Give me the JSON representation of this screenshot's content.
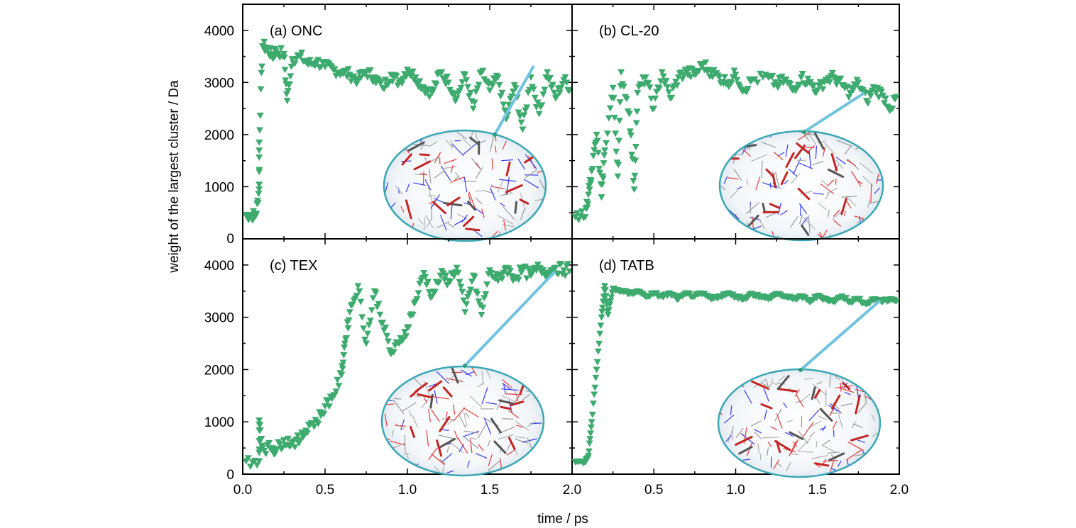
{
  "colors": {
    "marker": "#3daa6e",
    "frame": "#000000",
    "arrow": "#6fc3df",
    "inset_border": "#3aa6b5"
  },
  "axes": {
    "ylabel": "weight of the largest cluster / Da",
    "xlabel": "time / ps"
  },
  "chart_data": [
    {
      "type": "scatter",
      "label": "(a) ONC",
      "marker": "triangle-down",
      "xlim": [
        0,
        2.0
      ],
      "ylim": [
        0,
        4500
      ],
      "y_ticks": [
        "0",
        "1000",
        "2000",
        "3000",
        "4000"
      ],
      "x_ticks": [],
      "inset": "molecular-cluster-snapshot",
      "points": [
        [
          0.02,
          450
        ],
        [
          0.05,
          450
        ],
        [
          0.08,
          450
        ],
        [
          0.1,
          950
        ],
        [
          0.1,
          1850
        ],
        [
          0.12,
          3700
        ],
        [
          0.15,
          3650
        ],
        [
          0.18,
          3500
        ],
        [
          0.2,
          3600
        ],
        [
          0.25,
          3550
        ],
        [
          0.27,
          2650
        ],
        [
          0.3,
          3450
        ],
        [
          0.35,
          3500
        ],
        [
          0.4,
          3350
        ],
        [
          0.45,
          3400
        ],
        [
          0.5,
          3300
        ],
        [
          0.55,
          3250
        ],
        [
          0.6,
          3200
        ],
        [
          0.65,
          3150
        ],
        [
          0.7,
          3050
        ],
        [
          0.75,
          3200
        ],
        [
          0.8,
          3100
        ],
        [
          0.85,
          2900
        ],
        [
          0.9,
          3150
        ],
        [
          0.95,
          3000
        ],
        [
          1.0,
          3250
        ],
        [
          1.05,
          3100
        ],
        [
          1.1,
          2900
        ],
        [
          1.15,
          2800
        ],
        [
          1.2,
          3200
        ],
        [
          1.25,
          3000
        ],
        [
          1.3,
          2700
        ],
        [
          1.35,
          3150
        ],
        [
          1.4,
          2500
        ],
        [
          1.45,
          3200
        ],
        [
          1.5,
          2850
        ],
        [
          1.55,
          3100
        ],
        [
          1.6,
          2300
        ],
        [
          1.65,
          2950
        ],
        [
          1.7,
          2100
        ],
        [
          1.75,
          3100
        ],
        [
          1.8,
          2400
        ],
        [
          1.85,
          3200
        ],
        [
          1.9,
          2700
        ],
        [
          1.95,
          3050
        ],
        [
          2.0,
          2850
        ]
      ]
    },
    {
      "type": "scatter",
      "label": "(b) CL-20",
      "marker": "triangle-down",
      "xlim": [
        0,
        2.0
      ],
      "ylim": [
        0,
        4500
      ],
      "y_ticks": [],
      "x_ticks": [],
      "inset": "molecular-cluster-snapshot",
      "points": [
        [
          0.02,
          420
        ],
        [
          0.08,
          420
        ],
        [
          0.1,
          850
        ],
        [
          0.12,
          1300
        ],
        [
          0.15,
          2000
        ],
        [
          0.18,
          800
        ],
        [
          0.2,
          1700
        ],
        [
          0.25,
          2900
        ],
        [
          0.28,
          1200
        ],
        [
          0.3,
          3200
        ],
        [
          0.35,
          2400
        ],
        [
          0.38,
          950
        ],
        [
          0.4,
          2800
        ],
        [
          0.45,
          3100
        ],
        [
          0.5,
          2500
        ],
        [
          0.55,
          3200
        ],
        [
          0.6,
          2700
        ],
        [
          0.65,
          3100
        ],
        [
          0.7,
          3200
        ],
        [
          0.75,
          3150
        ],
        [
          0.8,
          3350
        ],
        [
          0.85,
          3200
        ],
        [
          0.9,
          3100
        ],
        [
          0.95,
          3000
        ],
        [
          1.0,
          3150
        ],
        [
          1.05,
          2850
        ],
        [
          1.1,
          3050
        ],
        [
          1.2,
          3100
        ],
        [
          1.25,
          2950
        ],
        [
          1.3,
          3050
        ],
        [
          1.35,
          2850
        ],
        [
          1.4,
          3100
        ],
        [
          1.45,
          3000
        ],
        [
          1.5,
          2850
        ],
        [
          1.55,
          3050
        ],
        [
          1.6,
          3100
        ],
        [
          1.65,
          2950
        ],
        [
          1.7,
          2800
        ],
        [
          1.75,
          3000
        ],
        [
          1.8,
          2650
        ],
        [
          1.85,
          2900
        ],
        [
          1.9,
          2750
        ],
        [
          1.95,
          2500
        ],
        [
          2.0,
          2800
        ]
      ]
    },
    {
      "type": "scatter",
      "label": "(c) TEX",
      "marker": "triangle-down",
      "xlim": [
        0,
        2.0
      ],
      "ylim": [
        0,
        4500
      ],
      "y_ticks": [
        "0",
        "1000",
        "2000",
        "3000",
        "4000"
      ],
      "x_ticks": [
        "0.0",
        "0.5",
        "1.0",
        "1.5",
        "2.0"
      ],
      "inset": "molecular-cluster-snapshot",
      "points": [
        [
          0.02,
          250
        ],
        [
          0.1,
          250
        ],
        [
          0.1,
          1030
        ],
        [
          0.12,
          500
        ],
        [
          0.18,
          500
        ],
        [
          0.2,
          450
        ],
        [
          0.25,
          650
        ],
        [
          0.3,
          600
        ],
        [
          0.35,
          650
        ],
        [
          0.4,
          950
        ],
        [
          0.45,
          1000
        ],
        [
          0.5,
          1300
        ],
        [
          0.55,
          1500
        ],
        [
          0.6,
          1900
        ],
        [
          0.62,
          2500
        ],
        [
          0.65,
          3100
        ],
        [
          0.7,
          3600
        ],
        [
          0.75,
          2500
        ],
        [
          0.8,
          3500
        ],
        [
          0.85,
          2900
        ],
        [
          0.9,
          2300
        ],
        [
          0.95,
          2500
        ],
        [
          1.0,
          2800
        ],
        [
          1.05,
          3300
        ],
        [
          1.1,
          3850
        ],
        [
          1.15,
          3400
        ],
        [
          1.2,
          3800
        ],
        [
          1.25,
          3700
        ],
        [
          1.3,
          3950
        ],
        [
          1.35,
          3100
        ],
        [
          1.4,
          3800
        ],
        [
          1.45,
          3050
        ],
        [
          1.5,
          3900
        ],
        [
          1.55,
          3700
        ],
        [
          1.6,
          3950
        ],
        [
          1.65,
          3750
        ],
        [
          1.7,
          3900
        ],
        [
          1.75,
          3800
        ],
        [
          1.8,
          3950
        ],
        [
          1.85,
          3850
        ],
        [
          1.9,
          3950
        ],
        [
          1.95,
          3900
        ],
        [
          2.0,
          3950
        ]
      ]
    },
    {
      "type": "scatter",
      "label": "(d) TATB",
      "marker": "triangle-down",
      "xlim": [
        0,
        2.0
      ],
      "ylim": [
        0,
        4500
      ],
      "y_ticks": [],
      "x_ticks": [
        "0.5",
        "1.0",
        "1.5",
        "2.0"
      ],
      "inset": "molecular-cluster-snapshot",
      "points": [
        [
          0.02,
          230
        ],
        [
          0.08,
          230
        ],
        [
          0.1,
          350
        ],
        [
          0.12,
          1000
        ],
        [
          0.15,
          2000
        ],
        [
          0.18,
          3000
        ],
        [
          0.2,
          3600
        ],
        [
          0.22,
          3050
        ],
        [
          0.25,
          3550
        ],
        [
          0.3,
          3500
        ],
        [
          0.35,
          3450
        ],
        [
          0.4,
          3500
        ],
        [
          0.45,
          3400
        ],
        [
          0.5,
          3450
        ],
        [
          0.55,
          3400
        ],
        [
          0.6,
          3450
        ],
        [
          0.65,
          3350
        ],
        [
          0.7,
          3450
        ],
        [
          0.75,
          3400
        ],
        [
          0.8,
          3450
        ],
        [
          0.85,
          3350
        ],
        [
          0.9,
          3400
        ],
        [
          0.95,
          3450
        ],
        [
          1.0,
          3400
        ],
        [
          1.05,
          3350
        ],
        [
          1.1,
          3450
        ],
        [
          1.15,
          3400
        ],
        [
          1.2,
          3350
        ],
        [
          1.25,
          3450
        ],
        [
          1.3,
          3400
        ],
        [
          1.35,
          3350
        ],
        [
          1.4,
          3400
        ],
        [
          1.45,
          3300
        ],
        [
          1.5,
          3400
        ],
        [
          1.55,
          3350
        ],
        [
          1.6,
          3300
        ],
        [
          1.65,
          3400
        ],
        [
          1.7,
          3300
        ],
        [
          1.75,
          3350
        ],
        [
          1.8,
          3250
        ],
        [
          1.85,
          3350
        ],
        [
          1.9,
          3300
        ],
        [
          1.95,
          3350
        ],
        [
          2.0,
          3300
        ]
      ]
    }
  ]
}
